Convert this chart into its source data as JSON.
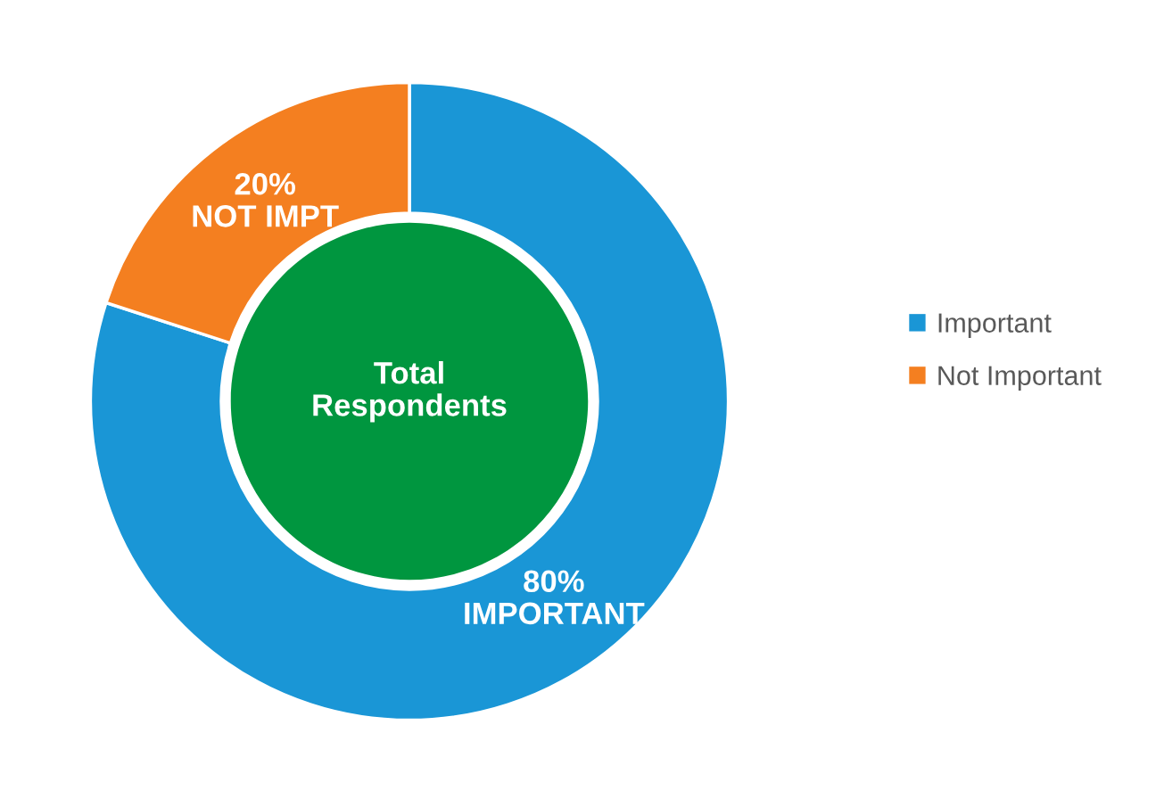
{
  "chart_data": {
    "type": "donut",
    "categories": [
      "Important",
      "Not Important"
    ],
    "values": [
      80,
      20
    ],
    "colors": [
      "#1a96d6",
      "#f47f20"
    ],
    "value_labels": [
      "80%\nIMPORTANT",
      "20%\nNOT IMPT"
    ],
    "annotations": [
      "Total\nRespondents"
    ],
    "legend": "right"
  }
}
